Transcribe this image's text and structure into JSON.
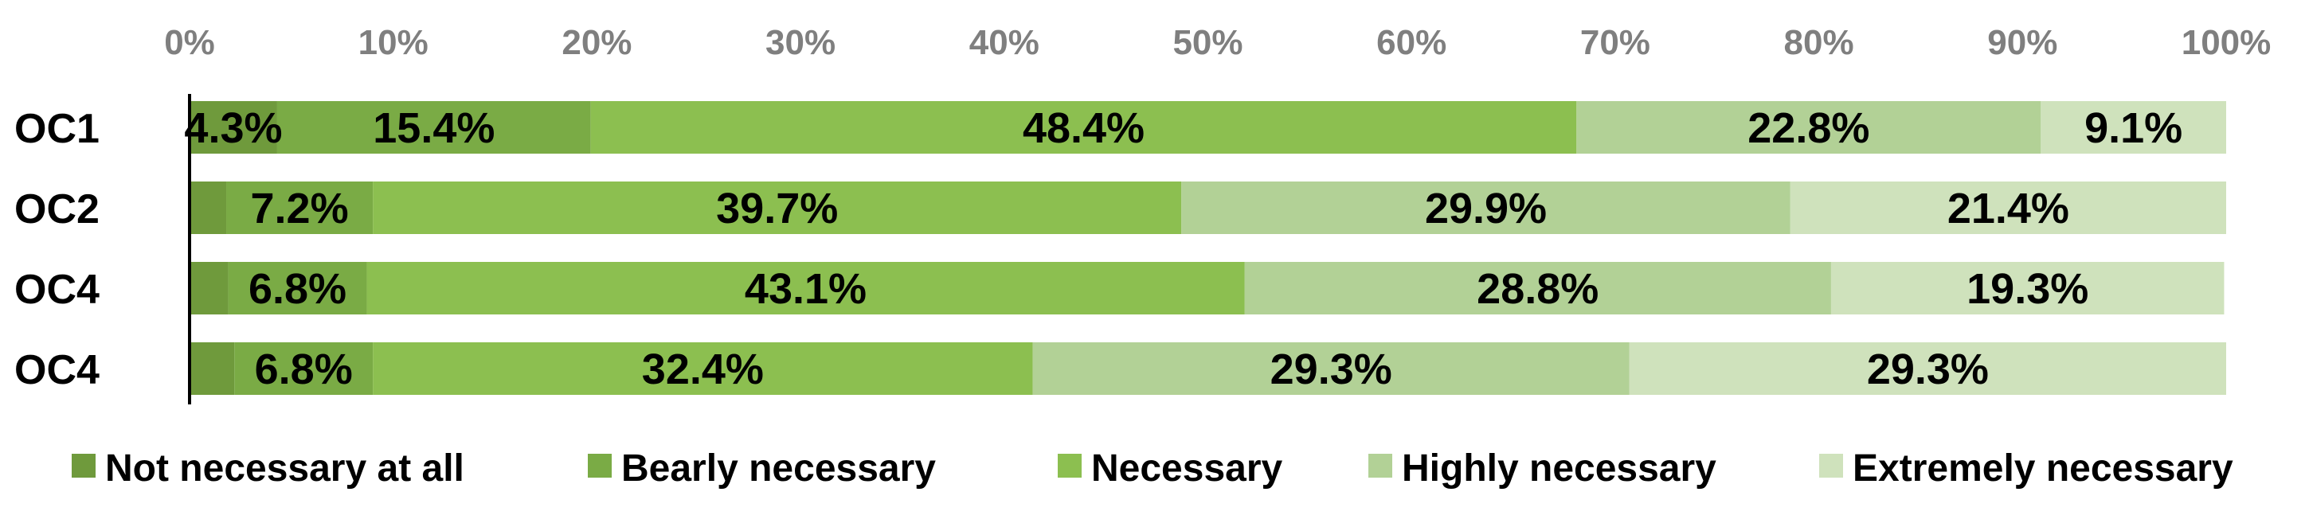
{
  "chart_data": {
    "type": "bar",
    "orientation": "horizontal",
    "stacked": true,
    "categories": [
      "OC1",
      "OC2",
      "OC4",
      "OC4"
    ],
    "xlim": [
      0,
      100
    ],
    "x_ticks": [
      "0%",
      "10%",
      "20%",
      "30%",
      "40%",
      "50%",
      "60%",
      "70%",
      "80%",
      "90%",
      "100%"
    ],
    "legend_position": "bottom",
    "grid": false,
    "series": [
      {
        "name": "Not necessary at all",
        "color": "#6f9a3c",
        "values": [
          4.3,
          1.8,
          1.9,
          2.2
        ],
        "labels": [
          "4.3%",
          "",
          "",
          ""
        ]
      },
      {
        "name": "Bearly necessary",
        "color": "#7aab45",
        "values": [
          15.4,
          7.2,
          6.8,
          6.8
        ],
        "labels": [
          "15.4%",
          "7.2%",
          "6.8%",
          "6.8%"
        ]
      },
      {
        "name": "Necessary",
        "color": "#8cbf50",
        "values": [
          48.4,
          39.7,
          43.1,
          32.4
        ],
        "labels": [
          "48.4%",
          "39.7%",
          "43.1%",
          "32.4%"
        ]
      },
      {
        "name": "Highly necessary",
        "color": "#b2d196",
        "values": [
          22.8,
          29.9,
          28.8,
          29.3
        ],
        "labels": [
          "22.8%",
          "29.9%",
          "28.8%",
          "29.3%"
        ]
      },
      {
        "name": "Extremely necessary",
        "color": "#cfe2bc",
        "values": [
          9.1,
          21.4,
          19.3,
          29.3
        ],
        "labels": [
          "9.1%",
          "21.4%",
          "19.3%",
          "29.3%"
        ]
      }
    ]
  }
}
